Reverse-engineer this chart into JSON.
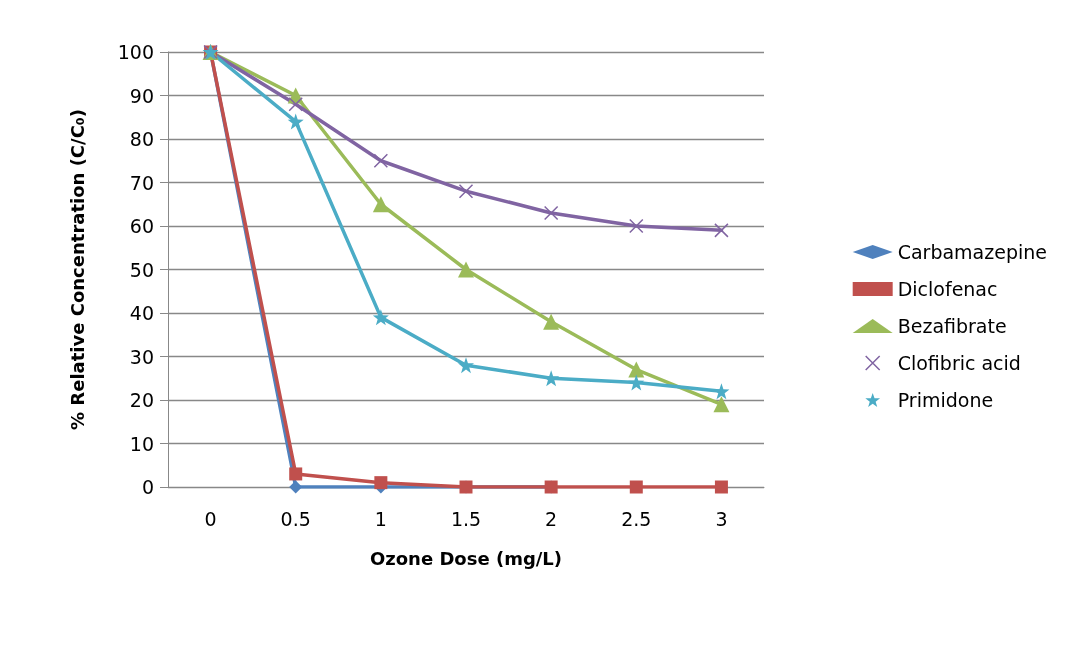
{
  "chart_data": {
    "type": "line",
    "xlabel": "Ozone Dose (mg/L)",
    "ylabel": "% Relative Concentration (C/C₀)",
    "categories": [
      "0",
      "0.5",
      "1",
      "1.5",
      "2",
      "2.5",
      "3"
    ],
    "series": [
      {
        "name": "Carbamazepine",
        "color": "#4f81bd",
        "marker": "diamond",
        "values": [
          100,
          0,
          0,
          0,
          0,
          null,
          null
        ]
      },
      {
        "name": "Diclofenac",
        "color": "#c0504d",
        "marker": "square",
        "values": [
          100,
          3,
          1,
          0,
          0,
          0,
          0
        ]
      },
      {
        "name": "Bezafibrate",
        "color": "#9bbb59",
        "marker": "triangle",
        "values": [
          100,
          90,
          65,
          50,
          38,
          27,
          19
        ]
      },
      {
        "name": "Clofibric acid",
        "color": "#8064a2",
        "marker": "cross",
        "values": [
          100,
          88,
          75,
          68,
          63,
          60,
          59
        ]
      },
      {
        "name": "Primidone",
        "color": "#4bacc6",
        "marker": "star",
        "values": [
          100,
          84,
          39,
          28,
          25,
          24,
          22
        ]
      }
    ],
    "ylim": [
      0,
      100
    ],
    "yticks": [
      0,
      10,
      20,
      30,
      40,
      50,
      60,
      70,
      80,
      90,
      100
    ],
    "grid": "y",
    "legend": "right",
    "line_style": "solid"
  }
}
